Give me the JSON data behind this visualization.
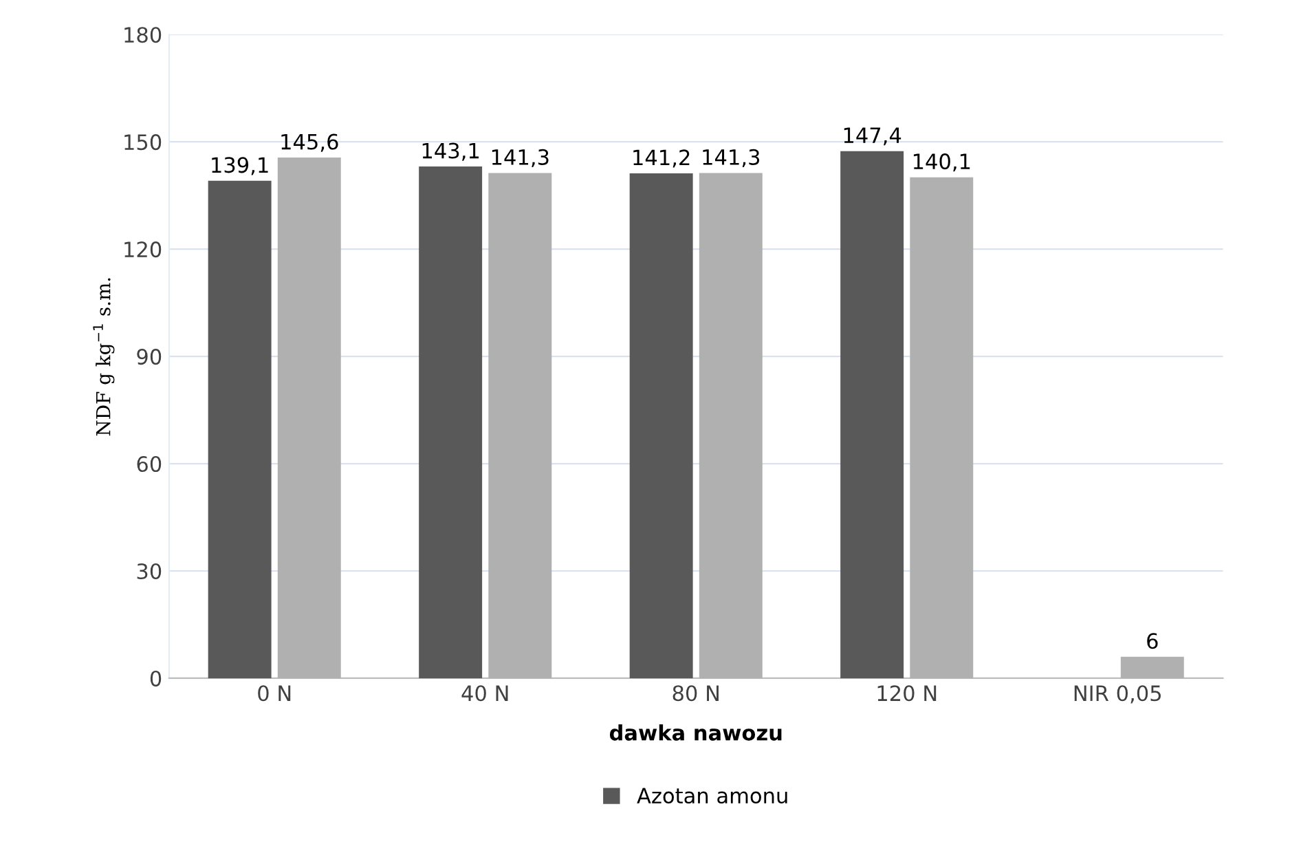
{
  "chart_data": {
    "type": "bar",
    "categories": [
      "0 N",
      "40 N",
      "80 N",
      "120 N",
      "NIR 0,05"
    ],
    "xlabel": "dawka nawozu",
    "ylabel": "NDF g kg$^{−1}$ s.m.",
    "series": [
      {
        "name": "Azotan amonu",
        "color": "#595959",
        "values": [
          139.1,
          143.1,
          141.2,
          147.4,
          null
        ],
        "value_labels": [
          "139,1",
          "143,1",
          "141,2",
          "147,4",
          null
        ]
      },
      {
        "color": "#b0b0b0",
        "values": [
          145.6,
          141.3,
          141.3,
          140.1,
          6
        ],
        "value_labels": [
          "145,6",
          "141,3",
          "141,3",
          "140,1",
          "6"
        ]
      }
    ],
    "ylim": [
      0,
      180
    ],
    "yticks": [
      0,
      30,
      60,
      90,
      120,
      150,
      180
    ],
    "grid": "y",
    "legend": "bottom"
  }
}
